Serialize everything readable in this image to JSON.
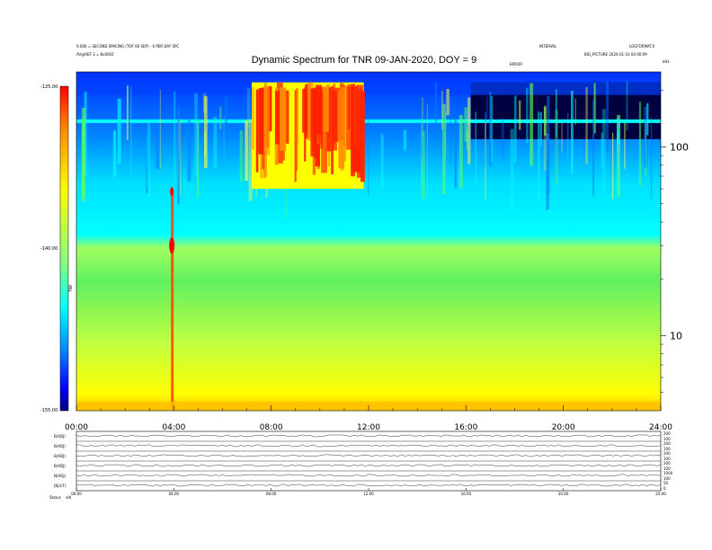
{
  "header": {
    "title": "Dynamic Spectrum for TNR 09-JAN-2020, DOY = 9",
    "left_line1": "9.000 = SECOND SPACING (TOF 60 SEP) - 0 PER DAY SPC",
    "left_line2": "AV@REF 3 = 8x0002",
    "right_top_a": "INTERVAL",
    "right_top_b": "LOGFORMAT.0",
    "right_line2": "BIG_PICTURE 2020-01-10 04:00:09",
    "sub_right": "ERROR",
    "kHz": "kHz"
  },
  "chart_data": [
    {
      "type": "heatmap",
      "title": "Dynamic Spectrum for TNR 09-JAN-2020, DOY = 9",
      "xlabel": "",
      "ylabel": "kHz",
      "x_ticks": [
        "00:00",
        "04:00",
        "08:00",
        "12:00",
        "16:00",
        "20:00",
        "24:00"
      ],
      "x_range_hours": [
        0,
        24
      ],
      "y_scale": "log",
      "y_range_khz": [
        4,
        250
      ],
      "y_ticks": [
        10,
        100
      ],
      "colorbar": {
        "label": "TNR",
        "ticks": [
          "-125.00",
          "-140.00",
          "-155.00"
        ],
        "range": [
          -155,
          -125
        ],
        "colors": [
          "#000080",
          "#0000ff",
          "#0080ff",
          "#00ffff",
          "#80ff80",
          "#ffff00",
          "#ff8000",
          "#ff0000"
        ]
      },
      "features": [
        {
          "desc": "strong burst region",
          "hours": [
            7.2,
            11.8
          ],
          "khz": [
            60,
            220
          ],
          "level": -125
        },
        {
          "desc": "spike at ~03:55",
          "hours": 3.92,
          "level": -125
        },
        {
          "desc": "dark background",
          "hours": [
            16.2,
            24
          ],
          "khz": [
            110,
            220
          ],
          "level": -155
        }
      ]
    },
    {
      "type": "line",
      "title": "",
      "x_ticks": [
        "00:00",
        "04:00",
        "08:00",
        "12:00",
        "16:00",
        "20:00",
        "24:00"
      ],
      "series": [
        {
          "name": "B(ADJ)",
          "axis_right": [
            "200",
            "100"
          ]
        },
        {
          "name": "B(ADJ)",
          "axis_right": [
            "200",
            "100"
          ]
        },
        {
          "name": "B(ADJ)",
          "axis_right": [
            "200",
            "100"
          ]
        },
        {
          "name": "B(ADJ)",
          "axis_right": [
            "200",
            "100"
          ]
        },
        {
          "name": "N(ADJ)",
          "axis_right": [
            "1000",
            "100"
          ]
        },
        {
          "name": "|B|(nT)",
          "axis_right": [
            "50",
            "0"
          ]
        }
      ],
      "footer_labels": [
        "Status",
        "alti"
      ]
    }
  ]
}
